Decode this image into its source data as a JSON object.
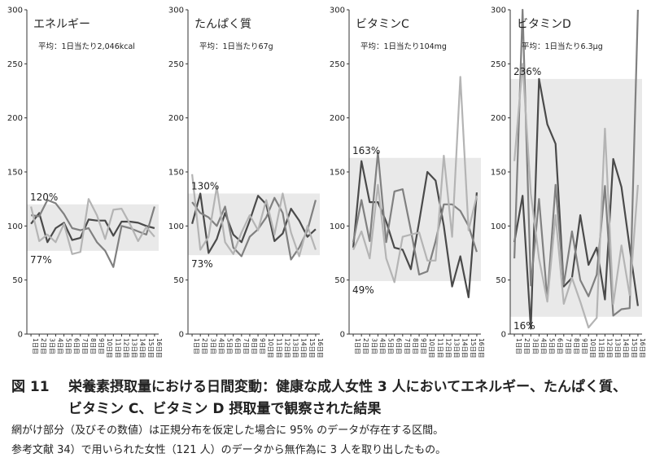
{
  "chart_data": [
    {
      "type": "line",
      "title": "エネルギー",
      "subtitle": "平均：1日当たり2,046kcal",
      "x": [
        "1日目",
        "2日目",
        "3日目",
        "4日目",
        "5日目",
        "6日目",
        "7日目",
        "8日目",
        "9日目",
        "10日目",
        "11日目",
        "12日目",
        "13日目",
        "14日目",
        "15日目",
        "16日目"
      ],
      "ylim": [
        0,
        300
      ],
      "yticks": [
        0,
        50,
        100,
        150,
        200,
        250,
        300
      ],
      "band": {
        "low": 77,
        "high": 120,
        "low_label": "77%",
        "high_label": "120%"
      },
      "series": [
        {
          "color": "#4a4a4a",
          "values": [
            102,
            112,
            85,
            98,
            103,
            87,
            89,
            106,
            105,
            105,
            91,
            104,
            104,
            103,
            100,
            98
          ]
        },
        {
          "color": "#808080",
          "values": [
            110,
            109,
            124,
            121,
            111,
            98,
            96,
            98,
            85,
            77,
            62,
            100,
            98,
            95,
            92,
            118
          ]
        },
        {
          "color": "#b4b4b4",
          "values": [
            118,
            86,
            92,
            85,
            102,
            74,
            76,
            125,
            110,
            88,
            115,
            116,
            102,
            86,
            99,
            90
          ]
        }
      ]
    },
    {
      "type": "line",
      "title": "たんぱく質",
      "subtitle": "平均：1日当たり67g",
      "x": [
        "1日目",
        "2日目",
        "3日目",
        "4日目",
        "5日目",
        "6日目",
        "7日目",
        "8日目",
        "9日目",
        "10日目",
        "11日目",
        "12日目",
        "13日目",
        "14日目",
        "15日目",
        "16日目"
      ],
      "ylim": [
        0,
        300
      ],
      "yticks": [
        0,
        50,
        100,
        150,
        200,
        250,
        300
      ],
      "band": {
        "low": 73,
        "high": 130,
        "low_label": "73%",
        "high_label": "130%"
      },
      "series": [
        {
          "color": "#4a4a4a",
          "values": [
            102,
            130,
            75,
            88,
            112,
            92,
            85,
            105,
            128,
            120,
            86,
            93,
            116,
            105,
            90,
            97
          ]
        },
        {
          "color": "#808080",
          "values": [
            122,
            112,
            108,
            100,
            118,
            80,
            72,
            90,
            97,
            108,
            126,
            112,
            69,
            80,
            96,
            124
          ]
        },
        {
          "color": "#b4b4b4",
          "values": [
            148,
            78,
            90,
            136,
            85,
            74,
            94,
            110,
            96,
            124,
            92,
            130,
            94,
            72,
            100,
            78
          ]
        }
      ]
    },
    {
      "type": "line",
      "title": "ビタミンC",
      "subtitle": "平均：1日当たり104mg",
      "x": [
        "1日目",
        "2日目",
        "3日目",
        "4日目",
        "5日目",
        "6日目",
        "7日目",
        "8日目",
        "9日目",
        "10日目",
        "11日目",
        "12日目",
        "13日目",
        "14日目",
        "15日目",
        "16日目"
      ],
      "ylim": [
        0,
        300
      ],
      "yticks": [
        0,
        50,
        100,
        150,
        200,
        250,
        300
      ],
      "band": {
        "low": 49,
        "high": 163,
        "low_label": "49%",
        "high_label": "163%"
      },
      "series": [
        {
          "color": "#4a4a4a",
          "values": [
            80,
            160,
            122,
            122,
            104,
            80,
            78,
            60,
            104,
            150,
            142,
            100,
            44,
            72,
            34,
            131
          ]
        },
        {
          "color": "#808080",
          "values": [
            85,
            124,
            86,
            168,
            85,
            132,
            134,
            96,
            55,
            58,
            86,
            120,
            120,
            114,
            100,
            76
          ]
        },
        {
          "color": "#b4b4b4",
          "values": [
            78,
            95,
            70,
            138,
            70,
            48,
            90,
            92,
            94,
            68,
            68,
            165,
            90,
            238,
            96,
            128
          ]
        }
      ]
    },
    {
      "type": "line",
      "title": "ビタミンD",
      "subtitle": "平均：1日当たり6.3μg",
      "x": [
        "1日目",
        "2日目",
        "3日目",
        "4日目",
        "5日目",
        "6日目",
        "7日目",
        "8日目",
        "9日目",
        "10日目",
        "11日目",
        "12日目",
        "13日目",
        "14日目",
        "15日目",
        "16日目"
      ],
      "ylim": [
        0,
        300
      ],
      "yticks": [
        0,
        50,
        100,
        150,
        200,
        250,
        300
      ],
      "band": {
        "low": 16,
        "high": 236,
        "low_label": "16%",
        "high_label": "236%"
      },
      "series": [
        {
          "color": "#4a4a4a",
          "values": [
            85,
            128,
            5,
            236,
            194,
            176,
            44,
            52,
            110,
            64,
            80,
            32,
            162,
            136,
            80,
            26
          ]
        },
        {
          "color": "#808080",
          "values": [
            70,
            300,
            45,
            125,
            32,
            138,
            46,
            95,
            50,
            35,
            55,
            137,
            17,
            23,
            24,
            300
          ]
        },
        {
          "color": "#b4b4b4",
          "values": [
            160,
            250,
            130,
            70,
            30,
            110,
            28,
            52,
            30,
            6,
            15,
            190,
            28,
            82,
            36,
            138
          ]
        }
      ]
    }
  ],
  "caption": {
    "figure_label": "図 11",
    "title_line1": "栄養素摂取量における日間変動：健康な成人女性 3 人においてエネルギー、たんぱく質、",
    "title_line2": "ビタミン C、ビタミン D 摂取量で観察された結果",
    "note_line1": "網がけ部分（及びその数値）は正規分布を仮定した場合に 95% のデータが存在する区間。",
    "note_line2": "参考文献 34）で用いられた女性（121 人）のデータから無作為に 3 人を取り出したもの。"
  }
}
